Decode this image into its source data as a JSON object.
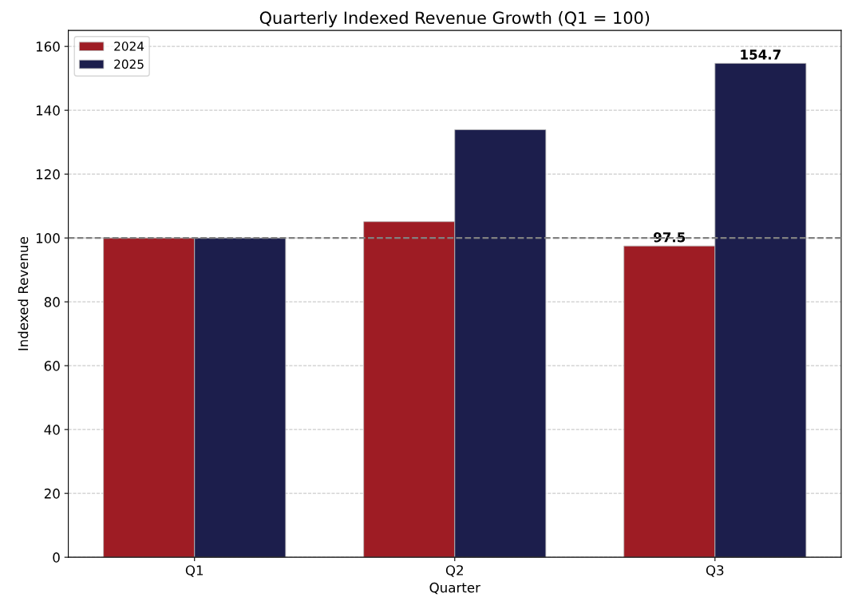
{
  "chart_data": {
    "type": "bar",
    "title": "Quarterly Indexed Revenue Growth (Q1 = 100)",
    "xlabel": "Quarter",
    "ylabel": "Indexed Revenue",
    "categories": [
      "Q1",
      "Q2",
      "Q3"
    ],
    "series": [
      {
        "name": "2024",
        "color": "#9e1c24",
        "values": [
          100,
          105.1,
          97.5
        ],
        "value_labels": [
          null,
          null,
          "97.5"
        ]
      },
      {
        "name": "2025",
        "color": "#1c1e4c",
        "values": [
          100,
          133.9,
          154.7
        ],
        "value_labels": [
          null,
          null,
          "154.7"
        ]
      }
    ],
    "ylim": [
      0,
      165
    ],
    "yticks": [
      0,
      20,
      40,
      60,
      80,
      100,
      120,
      140,
      160
    ],
    "grid": "y",
    "legend": "top left",
    "ref_lines": [
      {
        "axis": "y",
        "value": 100,
        "color": "#808080",
        "line_style": "dashed"
      }
    ]
  }
}
